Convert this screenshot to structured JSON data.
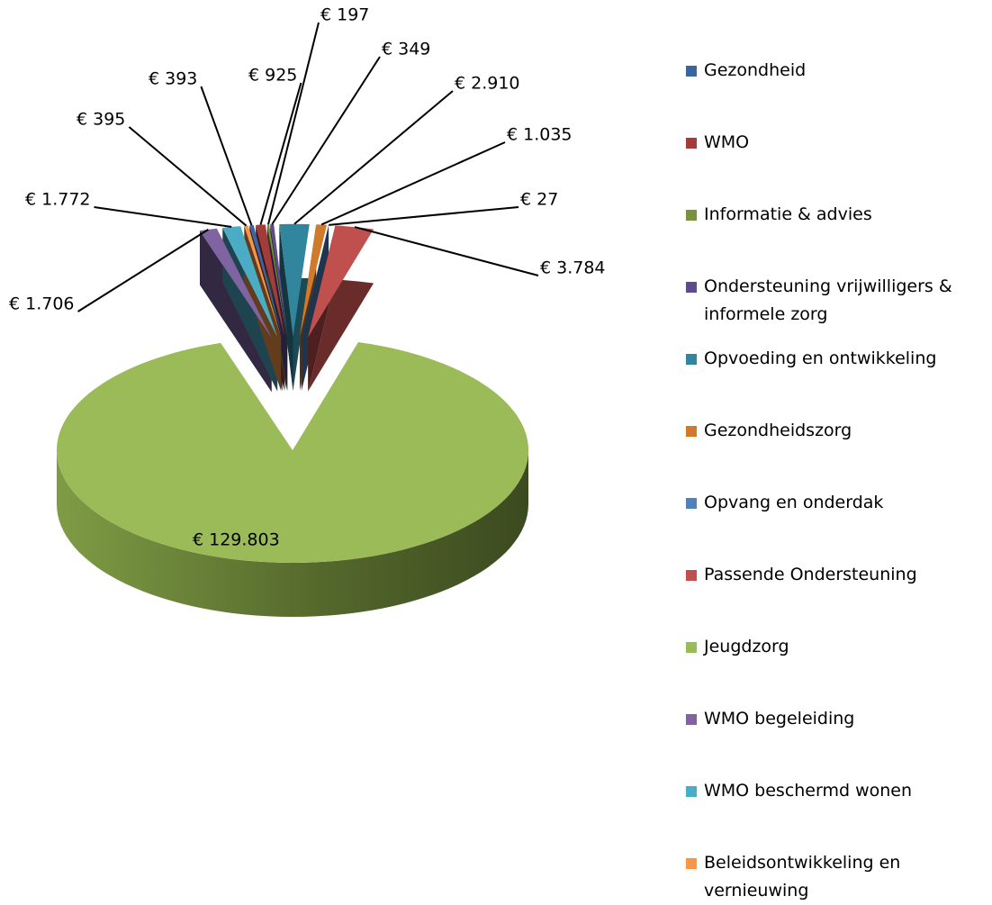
{
  "chart_data": {
    "type": "pie",
    "categories": [
      "Gezondheid",
      "WMO",
      "Informatie & advies",
      "Ondersteuning vrijwilligers & informele zorg",
      "Opvoeding en ontwikkeling",
      "Gezondheidszorg",
      "Opvang en onderdak",
      "Passende Ondersteuning",
      "Jeugdzorg",
      "WMO begeleiding",
      "WMO beschermd wonen",
      "Beleidsontwikkeling en vernieuwing"
    ],
    "values": [
      393,
      925,
      197,
      349,
      2910,
      1035,
      27,
      3784,
      129803,
      1706,
      1772,
      395
    ],
    "value_labels": [
      "€ 393",
      "€ 925",
      "€ 197",
      "€ 349",
      "€ 2.910",
      "€ 1.035",
      "€ 27",
      "€ 3.784",
      "€ 129.803",
      "€ 1.706",
      "€ 1.772",
      "€ 395"
    ],
    "colors": [
      "#3b64a0",
      "#a33b3b",
      "#77933c",
      "#5f4b8b",
      "#31859c",
      "#d07a2c",
      "#4f81bd",
      "#c0504d",
      "#9bbb59",
      "#8064a2",
      "#4bacc6",
      "#f79646"
    ],
    "legend": "right"
  }
}
